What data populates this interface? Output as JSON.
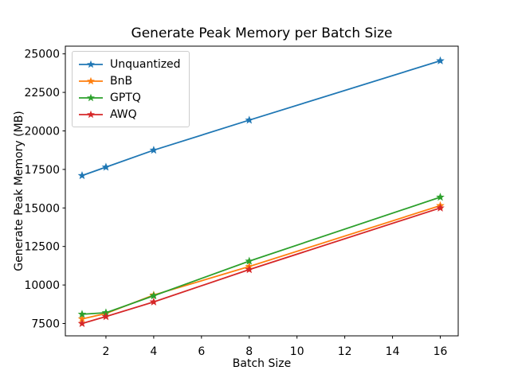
{
  "chart_data": {
    "type": "line",
    "title": "Generate Peak Memory per Batch Size",
    "xlabel": "Batch Size",
    "ylabel": "Generate Peak Memory (MB)",
    "x": [
      1,
      2,
      4,
      8,
      16
    ],
    "series": [
      {
        "name": "Unquantized",
        "color": "#1f77b4",
        "marker": "star",
        "values": [
          17100,
          17650,
          18750,
          20700,
          24550
        ]
      },
      {
        "name": "BnB",
        "color": "#ff7f0e",
        "marker": "star",
        "values": [
          7800,
          8150,
          9350,
          11200,
          15150
        ]
      },
      {
        "name": "GPTQ",
        "color": "#2ca02c",
        "marker": "star",
        "values": [
          8100,
          8200,
          9300,
          11550,
          15700
        ]
      },
      {
        "name": "AWQ",
        "color": "#d62728",
        "marker": "star",
        "values": [
          7500,
          7950,
          8900,
          11000,
          15000
        ]
      }
    ],
    "xticks": [
      2,
      4,
      6,
      8,
      10,
      12,
      14,
      16
    ],
    "yticks": [
      7500,
      10000,
      12500,
      15000,
      17500,
      20000,
      22500,
      25000
    ],
    "xlim": [
      0.3,
      16.75
    ],
    "ylim": [
      6700,
      25500
    ],
    "grid": false,
    "legend_position": "upper left",
    "axis_color": "#000000",
    "background_color": "#ffffff"
  }
}
